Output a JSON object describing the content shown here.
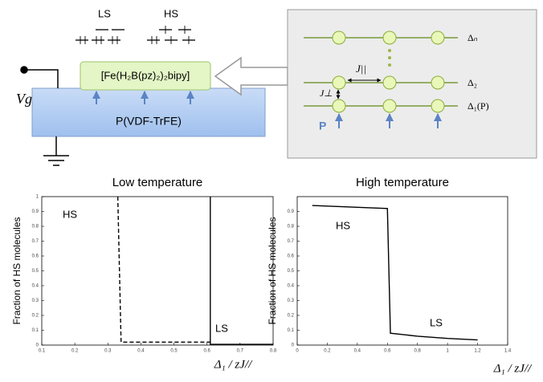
{
  "schematic": {
    "ls": "LS",
    "hs": "HS",
    "molecule": "[Fe(H₂B(pz)₂)₂bipy]",
    "substrate": "P(VDF-TrFE)",
    "gate": "Vg",
    "levels": [
      "Δₙ",
      "Δ₂",
      "Δ₁(P)"
    ],
    "j_parallel": "J||",
    "j_perp": "J⊥",
    "polarization": "P"
  },
  "chart_data": [
    {
      "type": "line",
      "title": "Low temperature",
      "y_label": "Fraction of HS molecules",
      "x_label": "Δ₁ / zJ//",
      "annotations": [
        "HS",
        "LS"
      ],
      "xlim": [
        0.1,
        0.8
      ],
      "xticks": [
        0.1,
        0.2,
        0.3,
        0.4,
        0.5,
        0.6,
        0.7,
        0.8
      ],
      "ylim": [
        0,
        1
      ],
      "yticks": [
        0,
        0.1,
        0.2,
        0.3,
        0.4,
        0.5,
        0.6,
        0.7,
        0.8,
        0.9,
        1
      ],
      "series": [
        {
          "color": "#000000",
          "dashed": true,
          "x": [
            0.33,
            0.34,
            0.61
          ],
          "values": [
            1,
            0.02,
            0.02
          ]
        },
        {
          "color": "#000000",
          "dashed": false,
          "x": [
            0.61,
            0.61,
            0.8
          ],
          "values": [
            1,
            0.005,
            0.005
          ]
        }
      ]
    },
    {
      "type": "line",
      "title": "High temperature",
      "y_label": "Fraction of HS molecules",
      "x_label": "Δ₁ / zJ//",
      "annotations": [
        "HS",
        "LS"
      ],
      "xlim": [
        0,
        1.4
      ],
      "xticks": [
        0,
        0.2,
        0.4,
        0.6,
        0.8,
        1,
        1.2,
        1.4
      ],
      "ylim": [
        0,
        1
      ],
      "yticks": [
        0,
        0.1,
        0.2,
        0.3,
        0.4,
        0.5,
        0.6,
        0.7,
        0.8,
        0.9
      ],
      "series": [
        {
          "color": "#000000",
          "dashed": false,
          "x": [
            0.1,
            0.6,
            0.61,
            0.62,
            0.8,
            1.0,
            1.2
          ],
          "values": [
            0.94,
            0.92,
            0.5,
            0.08,
            0.06,
            0.045,
            0.035
          ]
        }
      ]
    }
  ]
}
